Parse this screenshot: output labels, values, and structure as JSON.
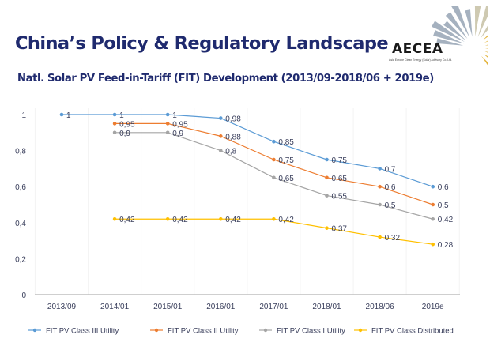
{
  "header": {
    "title": "China’s Policy & Regulatory Landscape",
    "subtitle": "Natl. Solar PV Feed-in-Tariff (FIT) Development (2013/09-2018/06 + 2019e)",
    "logo": {
      "name": "AECEA",
      "tagline": "Asia Europe Clean Energy (Solar) Advisory Co. Ltd.",
      "icon": "sunburst-icon"
    }
  },
  "chart_data": {
    "type": "line",
    "title": "Natl. Solar PV Feed-in-Tariff (FIT) Development (2013/09-2018/06 + 2019e)",
    "xlabel": "",
    "ylabel": "",
    "categories": [
      "2013/09",
      "2014/01",
      "2015/01",
      "2016/01",
      "2017/01",
      "2018/01",
      "2018/06",
      "2019e"
    ],
    "ylim": [
      0,
      1
    ],
    "yticks": [
      0,
      0.2,
      0.4,
      0.6,
      0.8,
      1
    ],
    "ytick_labels": [
      "0",
      "0,2",
      "0,4",
      "0,6",
      "0,8",
      "1"
    ],
    "grid": "vertical-faint",
    "legend_position": "bottom",
    "series": [
      {
        "name": "FIT PV Class III Utility",
        "color": "#5b9bd5",
        "values": [
          1,
          1,
          1,
          0.98,
          0.85,
          0.75,
          0.7,
          0.6
        ],
        "labels": [
          "1",
          "1",
          "1",
          "0,98",
          "0,85",
          "0,75",
          "0,7",
          "0,6"
        ]
      },
      {
        "name": "FIT PV Class II Utility",
        "color": "#ed7d31",
        "values": [
          null,
          0.95,
          0.95,
          0.88,
          0.75,
          0.65,
          0.6,
          0.5
        ],
        "labels": [
          "",
          "0,95",
          "0,95",
          "0,88",
          "0,75",
          "0,65",
          "0,6",
          "0,5"
        ]
      },
      {
        "name": "FIT PV Class I Utility",
        "color": "#a5a5a5",
        "values": [
          null,
          0.9,
          0.9,
          0.8,
          0.65,
          0.55,
          0.5,
          0.42
        ],
        "labels": [
          "",
          "0,9",
          "0,9",
          "0,8",
          "0,65",
          "0,55",
          "0,5",
          "0,42"
        ]
      },
      {
        "name": "FIT PV Class Distributed",
        "color": "#ffc000",
        "values": [
          null,
          0.42,
          0.42,
          0.42,
          0.42,
          0.37,
          0.32,
          0.28
        ],
        "labels": [
          "",
          "0,42",
          "0,42",
          "0,42",
          "0,42",
          "0,37",
          "0,32",
          "0,28"
        ]
      }
    ]
  }
}
